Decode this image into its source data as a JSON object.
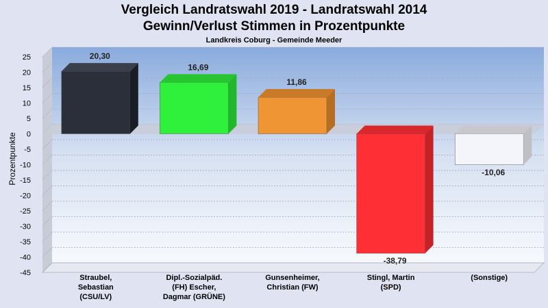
{
  "chart_data": {
    "type": "bar",
    "title": "Vergleich Landratswahl 2019 - Landratswahl 2014",
    "subtitle": "Gewinn/Verlust Stimmen in Prozentpunkte",
    "caption": "Landkreis Coburg - Gemeinde Meeder",
    "ylabel": "Prozentpunkte",
    "xlabel": "",
    "ylim": [
      -45,
      25
    ],
    "yticks": [
      25,
      20,
      15,
      10,
      5,
      0,
      -5,
      -10,
      -15,
      -20,
      -25,
      -30,
      -35,
      -40,
      -45
    ],
    "grid": true,
    "categories": [
      [
        "Straubel,",
        "Sebastian",
        "(CSU/LV)"
      ],
      [
        "Dipl.-Sozialpäd.",
        "(FH) Escher,",
        "Dagmar (GRÜNE)"
      ],
      [
        "Gunsenheimer,",
        "Christian (FW)"
      ],
      [
        "Stingl, Martin",
        "(SPD)"
      ],
      [
        "(Sonstige)"
      ]
    ],
    "values": [
      20.3,
      16.69,
      11.86,
      -38.79,
      -10.06
    ],
    "value_labels": [
      "20,30",
      "16,69",
      "11,86",
      "-38,79",
      "-10,06"
    ],
    "colors": [
      "#2a2f3a",
      "#2ff03a",
      "#f09533",
      "#ff3035",
      "#f3f5fb"
    ],
    "side_colors": [
      "#1a1d26",
      "#22b82b",
      "#b86e22",
      "#c42226",
      "#c0c0c4"
    ],
    "top_colors": [
      "#3a3f4c",
      "#27c530",
      "#c87a28",
      "#d9282c",
      "#c8c8cc"
    ]
  }
}
